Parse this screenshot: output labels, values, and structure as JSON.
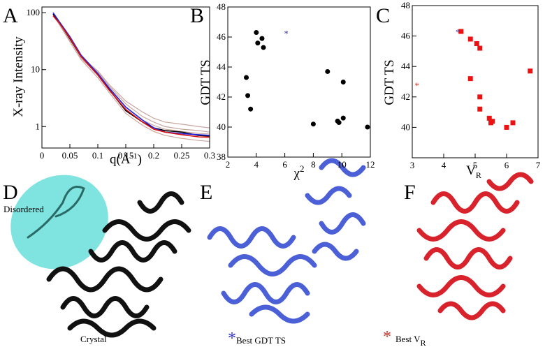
{
  "chart_data": [
    {
      "type": "line",
      "panel": "A",
      "ylabel": "X-ray Intensity",
      "xlabel": [
        "q(Å",
        "-1",
        ")"
      ],
      "log_y": true,
      "xlim": [
        0,
        0.3
      ],
      "ylim": [
        0.42,
        126
      ],
      "xticks": [
        0,
        0.05,
        0.1,
        0.15,
        0.2,
        0.25,
        0.3
      ],
      "yticks": [
        1,
        10,
        100
      ],
      "x": [
        0.02,
        0.03,
        0.05,
        0.07,
        0.1,
        0.12,
        0.15,
        0.18,
        0.2,
        0.22,
        0.25,
        0.28,
        0.3
      ],
      "series": [
        {
          "color": "#c9a5a0",
          "values": [
            92,
            66,
            33,
            17,
            9.5,
            5.5,
            2.8,
            1.8,
            1.4,
            1.2,
            1.1,
            1.0,
            0.95
          ]
        },
        {
          "color": "#c9a5a0",
          "values": [
            98,
            70,
            36,
            18,
            9,
            5.2,
            2.5,
            1.5,
            1.2,
            1.0,
            0.9,
            0.85,
            0.8
          ]
        },
        {
          "color": "#c9a5a0",
          "values": [
            90,
            64,
            31,
            15,
            7.2,
            4.0,
            1.7,
            1.05,
            0.82,
            0.7,
            0.62,
            0.57,
            0.55
          ]
        },
        {
          "color": "#c9a5a0",
          "values": [
            95,
            68,
            34,
            16,
            8,
            4.6,
            2.2,
            1.3,
            1.05,
            0.9,
            0.82,
            0.76,
            0.74
          ]
        },
        {
          "color": "#000000",
          "values": [
            95,
            70,
            35,
            17,
            8.5,
            4.5,
            1.9,
            1.2,
            0.95,
            0.85,
            0.8,
            0.7,
            0.68
          ]
        },
        {
          "color": "#2222dd",
          "values": [
            100,
            72,
            38,
            18,
            8.5,
            4.8,
            2.2,
            1.3,
            0.95,
            0.8,
            0.75,
            0.72,
            0.7
          ]
        },
        {
          "color": "#dd1111",
          "values": [
            88,
            68,
            36,
            17,
            8,
            4.4,
            2.0,
            1.2,
            0.9,
            0.8,
            0.72,
            0.66,
            0.65
          ]
        }
      ]
    },
    {
      "type": "scatter",
      "panel": "B",
      "ylabel": "GDT TS",
      "xlabel": [
        "χ",
        "2"
      ],
      "xlim": [
        2,
        12
      ],
      "ylim": [
        38,
        48
      ],
      "xticks": [
        2,
        4,
        6,
        8,
        10,
        12
      ],
      "yticks": [
        38,
        40,
        42,
        44,
        46,
        48
      ],
      "marker": "circle",
      "color": "#000000",
      "x": [
        3.3,
        3.4,
        3.6,
        4.0,
        4.1,
        4.4,
        4.5,
        8.0,
        9.0,
        9.7,
        9.8,
        10.1,
        10.1,
        11.8
      ],
      "values": [
        43.3,
        42.1,
        41.2,
        46.3,
        45.6,
        45.9,
        45.3,
        40.2,
        43.7,
        40.4,
        40.3,
        43.0,
        40.6,
        40.0
      ],
      "annotations": [
        {
          "text": "*",
          "x": 6.1,
          "y": 46.5,
          "color": "#3333cc"
        }
      ]
    },
    {
      "type": "scatter",
      "panel": "C",
      "ylabel": "GDT TS",
      "xlabel": [
        "V",
        "R"
      ],
      "xlim": [
        3,
        7
      ],
      "ylim": [
        38,
        48
      ],
      "xticks": [
        3,
        4,
        5,
        6,
        7
      ],
      "yticks": [
        40,
        42,
        44,
        46,
        48
      ],
      "marker": "square",
      "color": "#ee1111",
      "x": [
        4.55,
        4.85,
        5.05,
        5.15,
        4.85,
        5.15,
        5.15,
        5.45,
        5.5,
        5.55,
        6.0,
        6.2,
        6.75
      ],
      "values": [
        46.3,
        45.8,
        45.5,
        45.2,
        43.2,
        42.0,
        41.2,
        40.6,
        40.3,
        40.4,
        40.0,
        40.3,
        43.7
      ],
      "annotations": [
        {
          "text": "*",
          "x": 4.45,
          "y": 46.5,
          "color": "#3333cc"
        },
        {
          "text": "*",
          "x": 3.15,
          "y": 43.0,
          "color": "#c0392b"
        }
      ]
    }
  ],
  "images": {
    "d": {
      "panel": "D",
      "labels": [
        "Disordered",
        "Crystal"
      ]
    },
    "e": {
      "panel": "E",
      "star": "*",
      "caption": "Best GDT  TS"
    },
    "f": {
      "panel": "F",
      "star": "*",
      "caption": "Best V",
      "sub": "R"
    }
  }
}
